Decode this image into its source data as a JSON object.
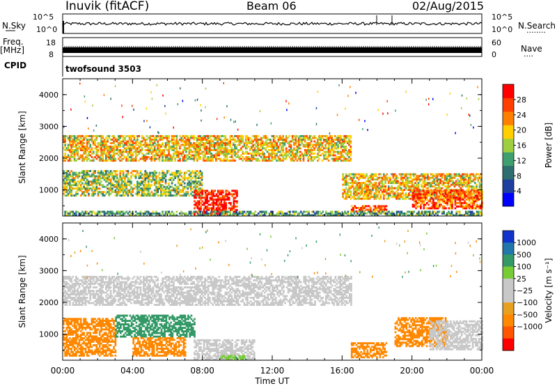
{
  "header": {
    "station": "Inuvik (fitACF)",
    "beam": "Beam 06",
    "date": "02/Aug/2015"
  },
  "aux_panels": {
    "nsky_label": "N.Sky",
    "nsky_ticks": [
      "10^5",
      "10^0"
    ],
    "nsearch_label": "N.Search",
    "nsearch_ticks": [
      "10^5",
      "10^0"
    ],
    "freq_label": "Freq.",
    "freq_unit": "[MHz]",
    "freq_ticks": [
      "18",
      "8"
    ],
    "nave_label": "Nave",
    "nave_ticks": [
      "60",
      "0"
    ],
    "cpid_label": "CPID",
    "cpid_value": "twofsound 3503"
  },
  "colors": {
    "power_scale": [
      "#0000ff",
      "#1f3f9f",
      "#2e6e6e",
      "#3f9f6f",
      "#9fcf3f",
      "#ffcf00",
      "#ff8000",
      "#ff3f00",
      "#ff0000"
    ],
    "velocity_scale": [
      "#ff0000",
      "#ff5500",
      "#ff8800",
      "#e8a020",
      "#c8c8c8",
      "#c8c8c8",
      "#77cc33",
      "#339966",
      "#2277aa",
      "#1133cc"
    ]
  },
  "chart_data": [
    {
      "type": "heatmap",
      "name": "power",
      "ylabel": "Slant Range [km]",
      "xlabel": "Time UT",
      "yticks": [
        "1000",
        "2000",
        "3000",
        "4000"
      ],
      "ylim": [
        180,
        4500
      ],
      "xticks": [
        "00:00",
        "04:00",
        "08:00",
        "12:00",
        "16:00",
        "20:00",
        "00:00"
      ],
      "xlim": [
        0,
        24
      ],
      "colorbar_label": "Power [dB]",
      "colorbar_ticks": [
        "4",
        "8",
        "12",
        "16",
        "20",
        "24",
        "28"
      ],
      "colorbar_range": [
        0,
        32
      ],
      "regions": [
        {
          "t0": 0.0,
          "t1": 10.5,
          "r0": 1900,
          "r1": 2700,
          "level": 20
        },
        {
          "t0": 10.5,
          "t1": 16.5,
          "r0": 1900,
          "r1": 2700,
          "level": 20
        },
        {
          "t0": 0.0,
          "t1": 8.0,
          "r0": 800,
          "r1": 1600,
          "level": 16
        },
        {
          "t0": 16.0,
          "t1": 24.0,
          "r0": 700,
          "r1": 1500,
          "level": 20
        },
        {
          "t0": 20.0,
          "t1": 24.0,
          "r0": 400,
          "r1": 1000,
          "level": 26
        },
        {
          "t0": 7.5,
          "t1": 10.0,
          "r0": 180,
          "r1": 1000,
          "level": 30
        },
        {
          "t0": 16.5,
          "t1": 18.5,
          "r0": 300,
          "r1": 500,
          "level": 26
        },
        {
          "t0": 0.0,
          "t1": 24.0,
          "r0": 180,
          "r1": 300,
          "level": 12
        }
      ]
    },
    {
      "type": "heatmap",
      "name": "velocity",
      "ylabel": "Slant Range [km]",
      "xlabel": "Time UT",
      "yticks": [
        "1000",
        "2000",
        "3000",
        "4000"
      ],
      "ylim": [
        180,
        4500
      ],
      "xticks": [
        "00:00",
        "04:00",
        "08:00",
        "12:00",
        "16:00",
        "20:00",
        "00:00"
      ],
      "xlim": [
        0,
        24
      ],
      "colorbar_label": "Velocity [m s⁻¹]",
      "colorbar_ticks": [
        "1000",
        "500",
        "100",
        "25",
        "−25",
        "−100",
        "−500",
        "−1000"
      ],
      "regions": [
        {
          "t0": 0.0,
          "t1": 16.5,
          "r0": 1900,
          "r1": 2800,
          "level": 0
        },
        {
          "t0": 0.0,
          "t1": 3.0,
          "r0": 300,
          "r1": 1500,
          "level": -300
        },
        {
          "t0": 3.0,
          "t1": 7.5,
          "r0": 900,
          "r1": 1600,
          "level": 200
        },
        {
          "t0": 4.0,
          "t1": 7.0,
          "r0": 300,
          "r1": 900,
          "level": -300
        },
        {
          "t0": 7.5,
          "t1": 11.0,
          "r0": 180,
          "r1": 800,
          "level": 0
        },
        {
          "t0": 9.0,
          "t1": 10.5,
          "r0": 180,
          "r1": 300,
          "level": 60
        },
        {
          "t0": 16.5,
          "t1": 18.5,
          "r0": 250,
          "r1": 700,
          "level": -300
        },
        {
          "t0": 19.0,
          "t1": 22.0,
          "r0": 600,
          "r1": 1500,
          "level": -300
        },
        {
          "t0": 21.0,
          "t1": 24.0,
          "r0": 500,
          "r1": 1400,
          "level": 0
        }
      ]
    }
  ]
}
